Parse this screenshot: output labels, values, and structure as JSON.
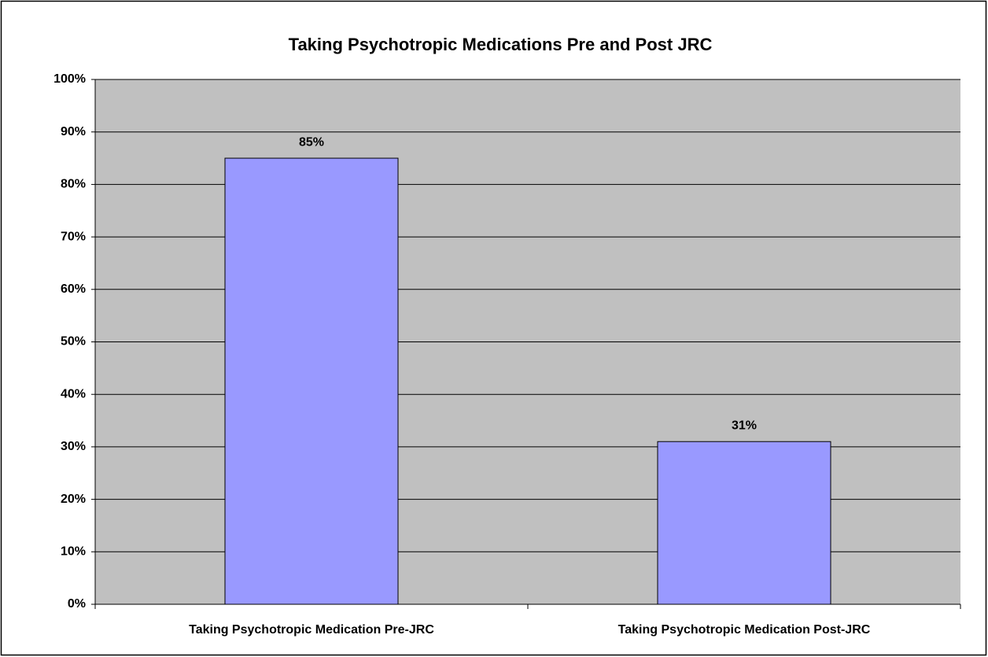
{
  "chart_data": {
    "type": "bar",
    "title": "Taking Psychotropic Medications Pre and Post JRC",
    "categories": [
      "Taking Psychotropic Medication Pre-JRC",
      "Taking Psychotropic Medication Post-JRC"
    ],
    "values": [
      85,
      31
    ],
    "value_labels": [
      "85%",
      "31%"
    ],
    "color": "#9999ff",
    "ylim": [
      0,
      100
    ],
    "yticks": [
      {
        "value": 0,
        "label": "0%"
      },
      {
        "value": 10,
        "label": "10%"
      },
      {
        "value": 20,
        "label": "20%"
      },
      {
        "value": 30,
        "label": "30%"
      },
      {
        "value": 40,
        "label": "40%"
      },
      {
        "value": 50,
        "label": "50%"
      },
      {
        "value": 60,
        "label": "60%"
      },
      {
        "value": 70,
        "label": "70%"
      },
      {
        "value": 80,
        "label": "80%"
      },
      {
        "value": 90,
        "label": "90%"
      },
      {
        "value": 100,
        "label": "100%"
      }
    ],
    "grid": true
  }
}
